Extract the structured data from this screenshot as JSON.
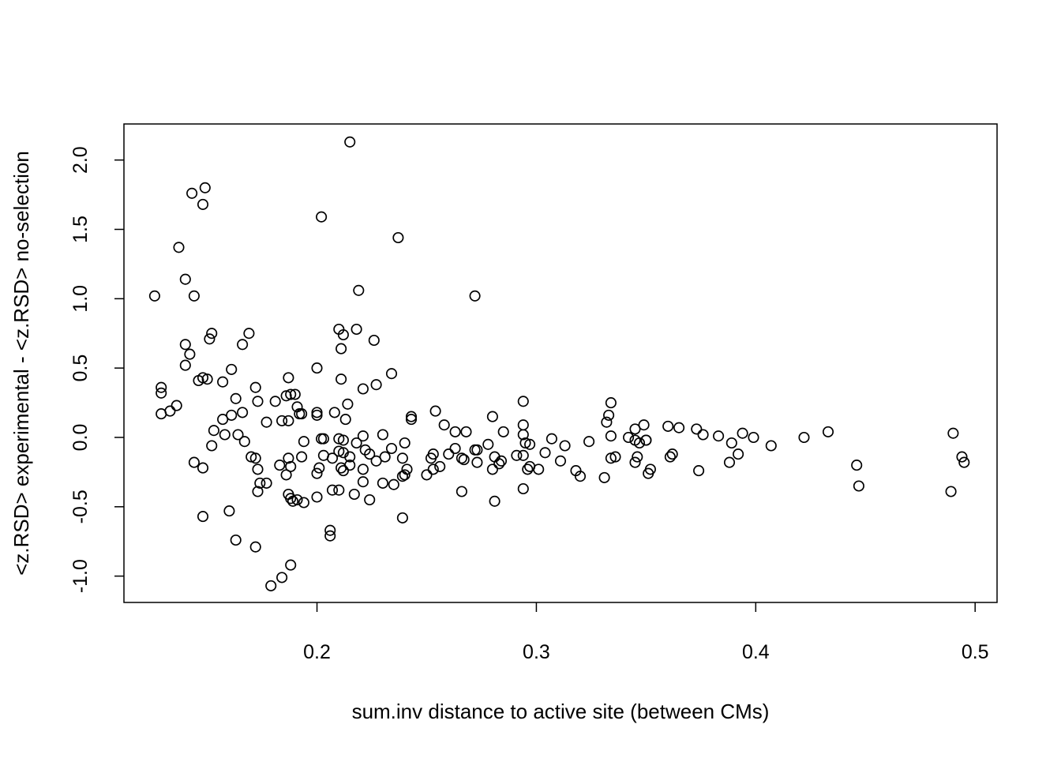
{
  "chart_data": {
    "type": "scatter",
    "title": "",
    "xlabel": "sum.inv distance to active site (between CMs)",
    "ylabel": "<z.RSD> experimental - <z.RSD> no-selection",
    "xlim": [
      0.112,
      0.51
    ],
    "ylim": [
      -1.19,
      2.26
    ],
    "xticks": [
      "0.2",
      "0.3",
      "0.4",
      "0.5"
    ],
    "yticks": [
      "-1.0",
      "-0.5",
      "0.0",
      "0.5",
      "1.0",
      "1.5",
      "2.0"
    ],
    "grid": false,
    "legend": "none",
    "marker": "open-circle",
    "point_color": "#000000",
    "points": [
      [
        0.215,
        2.13
      ],
      [
        0.149,
        1.8
      ],
      [
        0.143,
        1.76
      ],
      [
        0.148,
        1.68
      ],
      [
        0.202,
        1.59
      ],
      [
        0.237,
        1.44
      ],
      [
        0.137,
        1.37
      ],
      [
        0.14,
        1.14
      ],
      [
        0.219,
        1.06
      ],
      [
        0.126,
        1.02
      ],
      [
        0.144,
        1.02
      ],
      [
        0.272,
        1.02
      ],
      [
        0.21,
        0.78
      ],
      [
        0.218,
        0.78
      ],
      [
        0.152,
        0.75
      ],
      [
        0.169,
        0.75
      ],
      [
        0.212,
        0.74
      ],
      [
        0.151,
        0.71
      ],
      [
        0.226,
        0.7
      ],
      [
        0.14,
        0.67
      ],
      [
        0.166,
        0.67
      ],
      [
        0.211,
        0.64
      ],
      [
        0.142,
        0.6
      ],
      [
        0.14,
        0.52
      ],
      [
        0.2,
        0.5
      ],
      [
        0.161,
        0.49
      ],
      [
        0.234,
        0.46
      ],
      [
        0.148,
        0.43
      ],
      [
        0.15,
        0.42
      ],
      [
        0.187,
        0.43
      ],
      [
        0.211,
        0.42
      ],
      [
        0.146,
        0.41
      ],
      [
        0.157,
        0.4
      ],
      [
        0.227,
        0.38
      ],
      [
        0.129,
        0.36
      ],
      [
        0.172,
        0.36
      ],
      [
        0.221,
        0.35
      ],
      [
        0.129,
        0.32
      ],
      [
        0.188,
        0.31
      ],
      [
        0.19,
        0.31
      ],
      [
        0.186,
        0.3
      ],
      [
        0.163,
        0.28
      ],
      [
        0.181,
        0.26
      ],
      [
        0.173,
        0.26
      ],
      [
        0.294,
        0.26
      ],
      [
        0.334,
        0.25
      ],
      [
        0.136,
        0.23
      ],
      [
        0.191,
        0.22
      ],
      [
        0.214,
        0.24
      ],
      [
        0.133,
        0.19
      ],
      [
        0.254,
        0.19
      ],
      [
        0.129,
        0.17
      ],
      [
        0.161,
        0.16
      ],
      [
        0.166,
        0.18
      ],
      [
        0.192,
        0.17
      ],
      [
        0.193,
        0.17
      ],
      [
        0.2,
        0.18
      ],
      [
        0.2,
        0.16
      ],
      [
        0.208,
        0.18
      ],
      [
        0.243,
        0.15
      ],
      [
        0.28,
        0.15
      ],
      [
        0.333,
        0.16
      ],
      [
        0.157,
        0.13
      ],
      [
        0.184,
        0.12
      ],
      [
        0.187,
        0.12
      ],
      [
        0.177,
        0.11
      ],
      [
        0.213,
        0.13
      ],
      [
        0.243,
        0.13
      ],
      [
        0.258,
        0.09
      ],
      [
        0.294,
        0.09
      ],
      [
        0.332,
        0.11
      ],
      [
        0.349,
        0.09
      ],
      [
        0.36,
        0.08
      ],
      [
        0.365,
        0.07
      ],
      [
        0.373,
        0.06
      ],
      [
        0.345,
        0.06
      ],
      [
        0.153,
        0.05
      ],
      [
        0.263,
        0.04
      ],
      [
        0.268,
        0.04
      ],
      [
        0.285,
        0.04
      ],
      [
        0.158,
        0.02
      ],
      [
        0.164,
        0.02
      ],
      [
        0.23,
        0.02
      ],
      [
        0.221,
        0.01
      ],
      [
        0.294,
        0.02
      ],
      [
        0.334,
        0.01
      ],
      [
        0.342,
        0.0
      ],
      [
        0.376,
        0.02
      ],
      [
        0.383,
        0.01
      ],
      [
        0.394,
        0.03
      ],
      [
        0.399,
        0.0
      ],
      [
        0.422,
        0.0
      ],
      [
        0.433,
        0.04
      ],
      [
        0.49,
        0.03
      ],
      [
        0.202,
        -0.01
      ],
      [
        0.203,
        -0.01
      ],
      [
        0.21,
        -0.01
      ],
      [
        0.212,
        -0.02
      ],
      [
        0.218,
        -0.04
      ],
      [
        0.194,
        -0.03
      ],
      [
        0.167,
        -0.03
      ],
      [
        0.24,
        -0.04
      ],
      [
        0.295,
        -0.04
      ],
      [
        0.297,
        -0.05
      ],
      [
        0.307,
        -0.01
      ],
      [
        0.324,
        -0.03
      ],
      [
        0.345,
        -0.02
      ],
      [
        0.347,
        -0.04
      ],
      [
        0.35,
        -0.02
      ],
      [
        0.35,
        -0.02
      ],
      [
        0.152,
        -0.06
      ],
      [
        0.234,
        -0.08
      ],
      [
        0.263,
        -0.08
      ],
      [
        0.272,
        -0.09
      ],
      [
        0.273,
        -0.09
      ],
      [
        0.278,
        -0.05
      ],
      [
        0.222,
        -0.09
      ],
      [
        0.313,
        -0.06
      ],
      [
        0.389,
        -0.04
      ],
      [
        0.407,
        -0.06
      ],
      [
        0.203,
        -0.13
      ],
      [
        0.207,
        -0.15
      ],
      [
        0.21,
        -0.1
      ],
      [
        0.212,
        -0.11
      ],
      [
        0.215,
        -0.14
      ],
      [
        0.224,
        -0.12
      ],
      [
        0.231,
        -0.14
      ],
      [
        0.253,
        -0.12
      ],
      [
        0.26,
        -0.12
      ],
      [
        0.17,
        -0.14
      ],
      [
        0.172,
        -0.15
      ],
      [
        0.183,
        -0.2
      ],
      [
        0.187,
        -0.15
      ],
      [
        0.188,
        -0.21
      ],
      [
        0.193,
        -0.14
      ],
      [
        0.211,
        -0.22
      ],
      [
        0.215,
        -0.2
      ],
      [
        0.221,
        -0.23
      ],
      [
        0.227,
        -0.17
      ],
      [
        0.239,
        -0.15
      ],
      [
        0.252,
        -0.15
      ],
      [
        0.256,
        -0.21
      ],
      [
        0.266,
        -0.15
      ],
      [
        0.267,
        -0.16
      ],
      [
        0.273,
        -0.18
      ],
      [
        0.281,
        -0.14
      ],
      [
        0.283,
        -0.19
      ],
      [
        0.284,
        -0.17
      ],
      [
        0.291,
        -0.13
      ],
      [
        0.294,
        -0.13
      ],
      [
        0.304,
        -0.11
      ],
      [
        0.311,
        -0.17
      ],
      [
        0.334,
        -0.15
      ],
      [
        0.336,
        -0.14
      ],
      [
        0.345,
        -0.18
      ],
      [
        0.346,
        -0.14
      ],
      [
        0.361,
        -0.14
      ],
      [
        0.362,
        -0.12
      ],
      [
        0.392,
        -0.12
      ],
      [
        0.144,
        -0.18
      ],
      [
        0.148,
        -0.22
      ],
      [
        0.173,
        -0.23
      ],
      [
        0.186,
        -0.27
      ],
      [
        0.2,
        -0.26
      ],
      [
        0.201,
        -0.22
      ],
      [
        0.212,
        -0.24
      ],
      [
        0.24,
        -0.27
      ],
      [
        0.241,
        -0.23
      ],
      [
        0.253,
        -0.23
      ],
      [
        0.25,
        -0.27
      ],
      [
        0.28,
        -0.23
      ],
      [
        0.296,
        -0.23
      ],
      [
        0.297,
        -0.21
      ],
      [
        0.301,
        -0.23
      ],
      [
        0.318,
        -0.24
      ],
      [
        0.32,
        -0.28
      ],
      [
        0.331,
        -0.29
      ],
      [
        0.351,
        -0.26
      ],
      [
        0.352,
        -0.23
      ],
      [
        0.374,
        -0.24
      ],
      [
        0.388,
        -0.18
      ],
      [
        0.446,
        -0.2
      ],
      [
        0.494,
        -0.14
      ],
      [
        0.495,
        -0.18
      ],
      [
        0.174,
        -0.33
      ],
      [
        0.177,
        -0.33
      ],
      [
        0.173,
        -0.39
      ],
      [
        0.207,
        -0.38
      ],
      [
        0.21,
        -0.38
      ],
      [
        0.217,
        -0.41
      ],
      [
        0.221,
        -0.32
      ],
      [
        0.23,
        -0.33
      ],
      [
        0.235,
        -0.34
      ],
      [
        0.239,
        -0.28
      ],
      [
        0.266,
        -0.39
      ],
      [
        0.294,
        -0.37
      ],
      [
        0.447,
        -0.35
      ],
      [
        0.489,
        -0.39
      ],
      [
        0.187,
        -0.41
      ],
      [
        0.188,
        -0.44
      ],
      [
        0.189,
        -0.46
      ],
      [
        0.191,
        -0.45
      ],
      [
        0.194,
        -0.47
      ],
      [
        0.2,
        -0.43
      ],
      [
        0.224,
        -0.45
      ],
      [
        0.281,
        -0.46
      ],
      [
        0.239,
        -0.58
      ],
      [
        0.148,
        -0.57
      ],
      [
        0.16,
        -0.53
      ],
      [
        0.163,
        -0.74
      ],
      [
        0.172,
        -0.79
      ],
      [
        0.206,
        -0.67
      ],
      [
        0.206,
        -0.71
      ],
      [
        0.188,
        -0.92
      ],
      [
        0.184,
        -1.01
      ],
      [
        0.179,
        -1.07
      ]
    ]
  }
}
